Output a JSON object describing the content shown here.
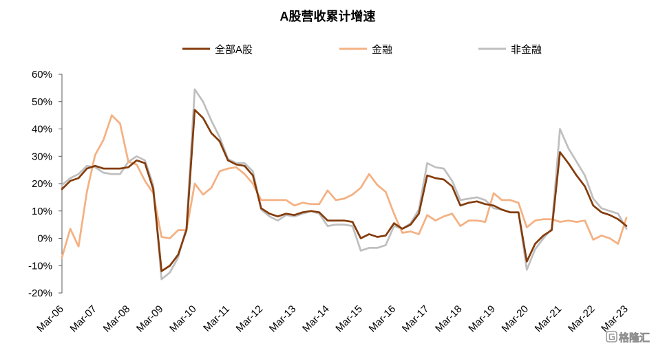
{
  "chart_data": {
    "type": "line",
    "title": "A股营收累计增速",
    "legend": "top",
    "grid": false,
    "ylim": [
      -20,
      60
    ],
    "y_ticks": [
      60,
      50,
      40,
      30,
      20,
      10,
      0,
      -10,
      -20
    ],
    "y_tick_labels": [
      "60%",
      "50%",
      "40%",
      "30%",
      "20%",
      "10%",
      "0%",
      "-10%",
      "-20%"
    ],
    "x_tick_labels": [
      "Mar-06",
      "Mar-07",
      "Mar-08",
      "Mar-09",
      "Mar-10",
      "Mar-11",
      "Mar-12",
      "Mar-13",
      "Mar-14",
      "Mar-15",
      "Mar-16",
      "Mar-17",
      "Mar-18",
      "Mar-19",
      "Mar-20",
      "Mar-21",
      "Mar-22",
      "Mar-23"
    ],
    "x": [
      "2006-03",
      "2006-06",
      "2006-09",
      "2006-12",
      "2007-03",
      "2007-06",
      "2007-09",
      "2007-12",
      "2008-03",
      "2008-06",
      "2008-09",
      "2008-12",
      "2009-03",
      "2009-06",
      "2009-09",
      "2009-12",
      "2010-03",
      "2010-06",
      "2010-09",
      "2010-12",
      "2011-03",
      "2011-06",
      "2011-09",
      "2011-12",
      "2012-03",
      "2012-06",
      "2012-09",
      "2012-12",
      "2013-03",
      "2013-06",
      "2013-09",
      "2013-12",
      "2014-03",
      "2014-06",
      "2014-09",
      "2014-12",
      "2015-03",
      "2015-06",
      "2015-09",
      "2015-12",
      "2016-03",
      "2016-06",
      "2016-09",
      "2016-12",
      "2017-03",
      "2017-06",
      "2017-09",
      "2017-12",
      "2018-03",
      "2018-06",
      "2018-09",
      "2018-12",
      "2019-03",
      "2019-06",
      "2019-09",
      "2019-12",
      "2020-03",
      "2020-06",
      "2020-09",
      "2020-12",
      "2021-03",
      "2021-06",
      "2021-09",
      "2021-12",
      "2022-03",
      "2022-06",
      "2022-09",
      "2022-12",
      "2023-03"
    ],
    "series": [
      {
        "name": "全部A股",
        "color": "#843C0C",
        "values": [
          18,
          21,
          22,
          25.5,
          26.5,
          25.5,
          25.5,
          25.5,
          26,
          28.5,
          27.5,
          18,
          -12,
          -10,
          -6,
          3,
          47,
          44,
          38.5,
          35.5,
          28.5,
          27,
          26.5,
          23,
          11,
          9,
          8,
          9,
          8.5,
          9.5,
          10,
          9.5,
          6.5,
          6.5,
          6.5,
          6,
          0,
          1.5,
          0.5,
          1,
          5.5,
          3.5,
          5,
          9,
          23,
          22,
          21.5,
          19,
          12,
          13,
          13.5,
          12.5,
          12,
          10.5,
          9.5,
          9.5,
          -8.5,
          -2,
          1,
          3,
          31.5,
          27.5,
          23,
          19,
          12,
          9.5,
          8.5,
          7,
          4.5
        ]
      },
      {
        "name": "金融",
        "color": "#F4B183",
        "values": [
          -7,
          3.5,
          -3,
          17,
          30.5,
          36,
          45,
          42,
          28,
          27,
          21,
          16.5,
          0.5,
          0,
          3,
          3,
          20,
          16,
          18.5,
          24.5,
          25.5,
          26,
          23.5,
          20,
          14,
          14,
          14,
          14,
          12,
          13,
          12.5,
          12.5,
          17.5,
          14,
          14.5,
          16,
          18.5,
          23.5,
          19.5,
          17,
          9,
          2,
          2.5,
          1.5,
          8.5,
          6.5,
          8,
          9,
          4.5,
          6.5,
          6.5,
          6,
          16.5,
          14,
          14,
          13,
          4,
          6.5,
          7,
          7,
          6,
          6.5,
          6,
          6.5,
          -0.5,
          1,
          0,
          -2,
          7.5
        ]
      },
      {
        "name": "非金融",
        "color": "#BFBFBF",
        "values": [
          19.5,
          22,
          23.5,
          26.5,
          26,
          24,
          23.5,
          23.5,
          28,
          30,
          28.5,
          19.5,
          -15,
          -12.5,
          -7,
          4,
          54.5,
          50,
          43,
          37,
          29,
          27.5,
          27.5,
          24.5,
          10.5,
          8,
          6.5,
          8.5,
          8,
          9,
          10,
          9,
          4.5,
          5,
          5,
          4.5,
          -4.5,
          -3.5,
          -3.5,
          -2.5,
          4.5,
          3.5,
          5.5,
          10.5,
          27.5,
          26,
          25.5,
          21,
          14,
          14.5,
          15,
          14,
          11,
          10.5,
          9.5,
          9.5,
          -11.5,
          -4,
          0,
          3.5,
          40,
          33,
          28,
          23,
          14.5,
          11,
          10,
          9,
          3.5
        ]
      }
    ]
  },
  "watermark": {
    "text": "格隆汇",
    "icon": "glh-logo-icon"
  }
}
